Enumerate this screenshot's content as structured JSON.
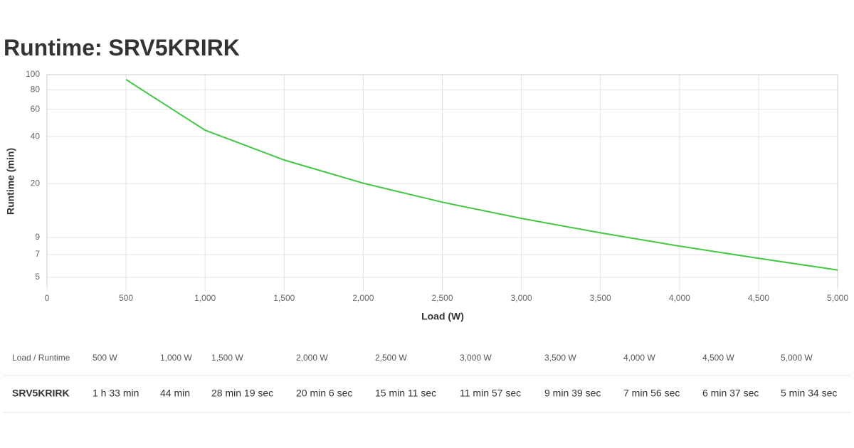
{
  "chart_data": {
    "type": "line",
    "title": "Runtime: SRV5KRIRK",
    "x_label": "Load (W)",
    "y_label": "Runtime (min)",
    "x": [
      500,
      1000,
      1500,
      2000,
      2500,
      3000,
      3500,
      4000,
      4500,
      5000
    ],
    "series": [
      {
        "color": "#44c744",
        "values": [
          93,
          44,
          28.32,
          20.1,
          15.18,
          11.95,
          9.65,
          7.93,
          6.62,
          5.57
        ]
      }
    ],
    "xlim": [
      0,
      5000
    ],
    "xticks": [
      0,
      500,
      {
        "value": 1000,
        "label": "1,000"
      },
      {
        "value": 1500,
        "label": "1,500"
      },
      {
        "value": 2000,
        "label": "2,000"
      },
      {
        "value": 2500,
        "label": "2,500"
      },
      {
        "value": 3000,
        "label": "3,000"
      },
      {
        "value": 3500,
        "label": "3,500"
      },
      {
        "value": 4000,
        "label": "4,000"
      },
      {
        "value": 4500,
        "label": "4,500"
      },
      {
        "value": 5000,
        "label": "5,000"
      }
    ],
    "ylim": [
      4.36,
      100
    ],
    "yticks": [
      5,
      7,
      9,
      20,
      40,
      60,
      80,
      100
    ],
    "y_log": true,
    "grid": true
  },
  "table": {
    "header": [
      "Load / Runtime",
      "500 W",
      "1,000 W",
      "1,500 W",
      "2,000 W",
      "2,500 W",
      "3,000 W",
      "3,500 W",
      "4,000 W",
      "4,500 W",
      "5,000 W"
    ],
    "rows": [
      [
        "SRV5KRIRK",
        "1 h 33 min",
        "44 min",
        "28 min 19 sec",
        "20 min 6 sec",
        "15 min 11 sec",
        "11 min 57 sec",
        "9 min 39 sec",
        "7 min 56 sec",
        "6 min 37 sec",
        "5 min 34 sec"
      ]
    ]
  }
}
